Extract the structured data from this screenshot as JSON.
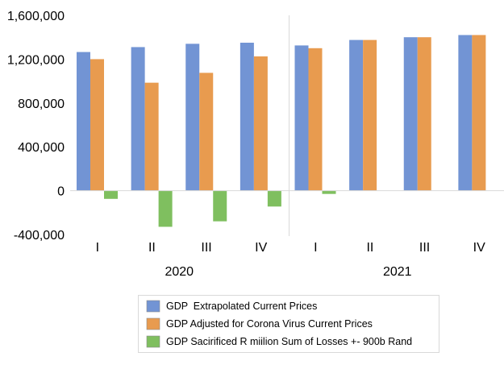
{
  "chart_data": {
    "type": "bar",
    "title": "",
    "xlabel": "",
    "ylabel": "",
    "ylim": [
      -400000,
      1600000
    ],
    "yticks": [
      -400000,
      0,
      400000,
      800000,
      1200000,
      1600000
    ],
    "ytick_labels": [
      "-400,000",
      "0",
      "400,000",
      "800,000",
      "1,200,000",
      "1,600,000"
    ],
    "categories": [
      "I",
      "II",
      "III",
      "IV",
      "I",
      "II",
      "III",
      "IV"
    ],
    "groups": [
      {
        "label": "2020",
        "span": [
          0,
          3
        ]
      },
      {
        "label": "2021",
        "span": [
          4,
          7
        ]
      }
    ],
    "series": [
      {
        "name": "GDP  Extrapolated Current Prices",
        "color": "#7294d4",
        "values": [
          1265000,
          1310000,
          1340000,
          1350000,
          1325000,
          1375000,
          1400000,
          1420000
        ]
      },
      {
        "name": "GDP Adjusted for Corona Virus Current Prices",
        "color": "#e89b4f",
        "values": [
          1200000,
          985000,
          1075000,
          1225000,
          1300000,
          1375000,
          1400000,
          1420000
        ]
      },
      {
        "name": "GDP Sacirificed R miilion Sum of Losses +- 900b Rand",
        "color": "#7fbf5f",
        "values": [
          -75000,
          -330000,
          -280000,
          -145000,
          -30000,
          0,
          0,
          0
        ]
      }
    ],
    "grid": false,
    "legend_position": "bottom-center"
  }
}
